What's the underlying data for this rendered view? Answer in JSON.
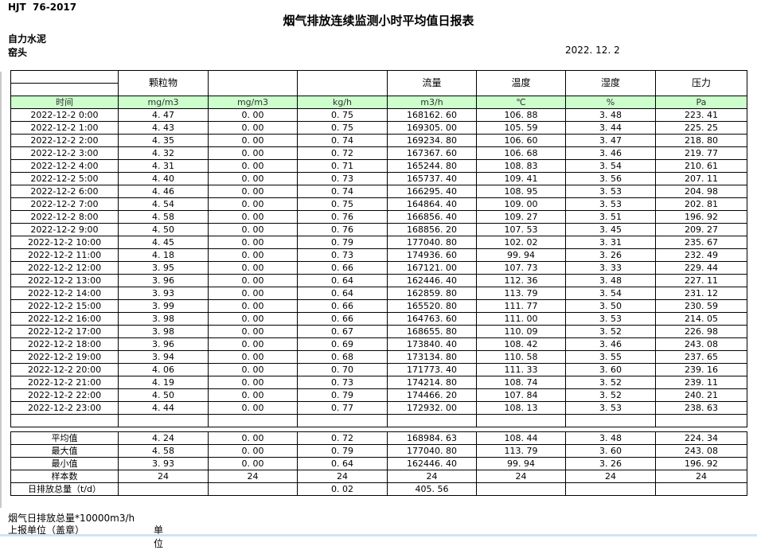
{
  "header": {
    "standard": "HJT  76-2017",
    "title": "烟气排放连续监测小时平均值日报表",
    "company": "自力水泥",
    "station": "窑头",
    "date": "2022. 12. 2"
  },
  "table": {
    "time_label": "时间",
    "group_headers": [
      "颗粒物",
      "",
      "",
      "流量",
      "温度",
      "湿度",
      "压力"
    ],
    "units": [
      "mg/m3",
      "mg/m3",
      "kg/h",
      "m3/h",
      "℃",
      "%",
      "Pa"
    ],
    "rows": [
      {
        "time": "2022-12-2 0:00",
        "values": [
          "4. 47",
          "0. 00",
          "0. 75",
          "168162. 60",
          "106. 88",
          "3. 48",
          "223. 41"
        ]
      },
      {
        "time": "2022-12-2 1:00",
        "values": [
          "4. 43",
          "0. 00",
          "0. 75",
          "169305. 00",
          "105. 59",
          "3. 44",
          "225. 25"
        ]
      },
      {
        "time": "2022-12-2 2:00",
        "values": [
          "4. 35",
          "0. 00",
          "0. 74",
          "169234. 80",
          "106. 60",
          "3. 47",
          "218. 80"
        ]
      },
      {
        "time": "2022-12-2 3:00",
        "values": [
          "4. 32",
          "0. 00",
          "0. 72",
          "167367. 60",
          "106. 68",
          "3. 46",
          "219. 77"
        ]
      },
      {
        "time": "2022-12-2 4:00",
        "values": [
          "4. 31",
          "0. 00",
          "0. 71",
          "165244. 80",
          "108. 83",
          "3. 54",
          "210. 61"
        ]
      },
      {
        "time": "2022-12-2 5:00",
        "values": [
          "4. 40",
          "0. 00",
          "0. 73",
          "165737. 40",
          "109. 41",
          "3. 56",
          "207. 11"
        ]
      },
      {
        "time": "2022-12-2 6:00",
        "values": [
          "4. 46",
          "0. 00",
          "0. 74",
          "166295. 40",
          "108. 95",
          "3. 53",
          "204. 98"
        ]
      },
      {
        "time": "2022-12-2 7:00",
        "values": [
          "4. 54",
          "0. 00",
          "0. 75",
          "164864. 40",
          "109. 00",
          "3. 53",
          "202. 81"
        ]
      },
      {
        "time": "2022-12-2 8:00",
        "values": [
          "4. 58",
          "0. 00",
          "0. 76",
          "166856. 40",
          "109. 27",
          "3. 51",
          "196. 92"
        ]
      },
      {
        "time": "2022-12-2 9:00",
        "values": [
          "4. 50",
          "0. 00",
          "0. 76",
          "168856. 20",
          "107. 53",
          "3. 45",
          "209. 27"
        ]
      },
      {
        "time": "2022-12-2 10:00",
        "values": [
          "4. 45",
          "0. 00",
          "0. 79",
          "177040. 80",
          "102. 02",
          "3. 31",
          "235. 67"
        ]
      },
      {
        "time": "2022-12-2 11:00",
        "values": [
          "4. 18",
          "0. 00",
          "0. 73",
          "174936. 60",
          "99. 94",
          "3. 26",
          "232. 49"
        ]
      },
      {
        "time": "2022-12-2 12:00",
        "values": [
          "3. 95",
          "0. 00",
          "0. 66",
          "167121. 00",
          "107. 73",
          "3. 33",
          "229. 44"
        ]
      },
      {
        "time": "2022-12-2 13:00",
        "values": [
          "3. 96",
          "0. 00",
          "0. 64",
          "162446. 40",
          "112. 36",
          "3. 48",
          "227. 11"
        ]
      },
      {
        "time": "2022-12-2 14:00",
        "values": [
          "3. 93",
          "0. 00",
          "0. 64",
          "162859. 80",
          "113. 79",
          "3. 54",
          "231. 12"
        ]
      },
      {
        "time": "2022-12-2 15:00",
        "values": [
          "3. 99",
          "0. 00",
          "0. 66",
          "165520. 80",
          "111. 77",
          "3. 50",
          "230. 59"
        ]
      },
      {
        "time": "2022-12-2 16:00",
        "values": [
          "3. 98",
          "0. 00",
          "0. 66",
          "164763. 60",
          "111. 00",
          "3. 53",
          "214. 05"
        ]
      },
      {
        "time": "2022-12-2 17:00",
        "values": [
          "3. 98",
          "0. 00",
          "0. 67",
          "168655. 80",
          "110. 09",
          "3. 52",
          "226. 98"
        ]
      },
      {
        "time": "2022-12-2 18:00",
        "values": [
          "3. 96",
          "0. 00",
          "0. 69",
          "173840. 40",
          "108. 42",
          "3. 46",
          "243. 08"
        ]
      },
      {
        "time": "2022-12-2 19:00",
        "values": [
          "3. 94",
          "0. 00",
          "0. 68",
          "173134. 80",
          "110. 58",
          "3. 55",
          "237. 65"
        ]
      },
      {
        "time": "2022-12-2 20:00",
        "values": [
          "4. 06",
          "0. 00",
          "0. 70",
          "171773. 40",
          "111. 33",
          "3. 60",
          "239. 16"
        ]
      },
      {
        "time": "2022-12-2 21:00",
        "values": [
          "4. 19",
          "0. 00",
          "0. 73",
          "174214. 80",
          "108. 74",
          "3. 52",
          "239. 11"
        ]
      },
      {
        "time": "2022-12-2 22:00",
        "values": [
          "4. 50",
          "0. 00",
          "0. 79",
          "174466. 20",
          "107. 84",
          "3. 52",
          "240. 21"
        ]
      },
      {
        "time": "2022-12-2 23:00",
        "values": [
          "4. 44",
          "0. 00",
          "0. 77",
          "172932. 00",
          "108. 13",
          "3. 53",
          "238. 63"
        ]
      }
    ],
    "summary_rows": [
      {
        "label": "平均值",
        "values": [
          "4. 24",
          "0. 00",
          "0. 72",
          "168984. 63",
          "108. 44",
          "3. 48",
          "224. 34"
        ]
      },
      {
        "label": "最大值",
        "values": [
          "4. 58",
          "0. 00",
          "0. 79",
          "177040. 80",
          "113. 79",
          "3. 60",
          "243. 08"
        ]
      },
      {
        "label": "最小值",
        "values": [
          "3. 93",
          "0. 00",
          "0. 64",
          "162446. 40",
          "99. 94",
          "3. 26",
          "196. 92"
        ]
      },
      {
        "label": "样本数",
        "values": [
          "24",
          "24",
          "24",
          "24",
          "24",
          "24",
          "24"
        ]
      },
      {
        "label": "日排放总量（t/d）",
        "values": [
          "",
          "",
          "0. 02",
          "405. 56",
          "",
          "",
          ""
        ]
      }
    ]
  },
  "footer": {
    "note": "烟气日排放总量*10000m3/h",
    "report_unit": "上报单位（盖章）",
    "unit_label": "单位"
  },
  "colors": {
    "unit_row_green": "#ccffcc",
    "bottom_strip_blue": "#cfe4f7"
  }
}
